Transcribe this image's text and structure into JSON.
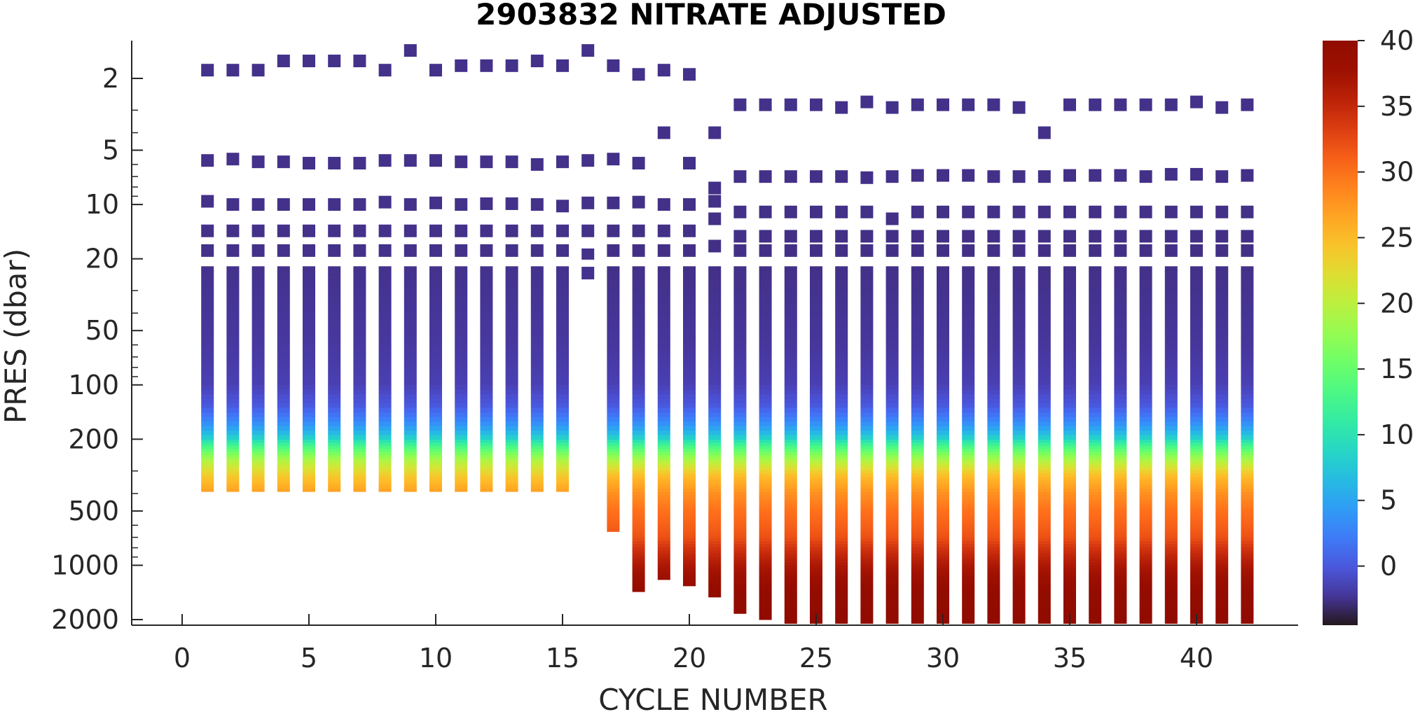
{
  "chart_data": {
    "type": "heatmap",
    "title": "2903832  NITRATE ADJUSTED",
    "xlabel": "CYCLE NUMBER",
    "ylabel": "PRES (dbar)",
    "x_scale": "linear",
    "y_scale": "log",
    "y_reversed": true,
    "xlim": [
      -1,
      44
    ],
    "ylim": [
      1.4,
      2100
    ],
    "xticks": [
      0,
      5,
      10,
      15,
      20,
      25,
      30,
      35,
      40
    ],
    "yticks": [
      2,
      5,
      10,
      20,
      50,
      100,
      200,
      500,
      1000,
      2000
    ],
    "colorbar": {
      "label": "",
      "range": [
        -4.5,
        40
      ],
      "ticks": [
        0,
        5,
        10,
        15,
        20,
        25,
        30,
        35,
        40
      ],
      "colormap": "turbo"
    },
    "cycles": [
      1,
      2,
      3,
      4,
      5,
      6,
      7,
      8,
      9,
      10,
      11,
      12,
      13,
      14,
      15,
      16,
      17,
      18,
      19,
      20,
      21,
      22,
      23,
      24,
      25,
      26,
      27,
      28,
      29,
      30,
      31,
      32,
      33,
      34,
      35,
      36,
      37,
      38,
      39,
      40,
      41,
      42
    ],
    "near_surface_pressures": [
      [
        1.8,
        5.7,
        9.6,
        14,
        18
      ],
      [
        1.8,
        5.6,
        10,
        14,
        18
      ],
      [
        1.8,
        5.8,
        10,
        14,
        18
      ],
      [
        1.6,
        5.8,
        10,
        14,
        18
      ],
      [
        1.6,
        5.9,
        10,
        14,
        18
      ],
      [
        1.6,
        5.9,
        10,
        14,
        18
      ],
      [
        1.6,
        5.9,
        10,
        14,
        18
      ],
      [
        1.8,
        5.7,
        9.7,
        14,
        18
      ],
      [
        1.4,
        5.7,
        10,
        14,
        18
      ],
      [
        1.8,
        5.7,
        9.8,
        14,
        18
      ],
      [
        1.7,
        5.8,
        10,
        14,
        18
      ],
      [
        1.7,
        5.8,
        9.9,
        14,
        18
      ],
      [
        1.7,
        5.8,
        9.9,
        14,
        18
      ],
      [
        1.6,
        6.0,
        10,
        14,
        18
      ],
      [
        1.7,
        5.8,
        10.2,
        14,
        18
      ],
      [
        1.4,
        5.7,
        9.8,
        14,
        19,
        24
      ],
      [
        1.7,
        5.6,
        9.8,
        14,
        18
      ],
      [
        1.9,
        5.9,
        9.7,
        14,
        18
      ],
      [
        1.8,
        4.0,
        10,
        14,
        18
      ],
      [
        1.9,
        5.9,
        10,
        14,
        18
      ],
      [
        4.0,
        8.1,
        9.6,
        12,
        17
      ],
      [
        2.8,
        7.0,
        11,
        15,
        18
      ],
      [
        2.8,
        7.0,
        11,
        15,
        18
      ],
      [
        2.8,
        7.0,
        11,
        15,
        18
      ],
      [
        2.8,
        7.0,
        11,
        15,
        18
      ],
      [
        2.9,
        7.0,
        11,
        15,
        18
      ],
      [
        2.7,
        7.1,
        11,
        15,
        18
      ],
      [
        2.9,
        7.0,
        12,
        15,
        18
      ],
      [
        2.8,
        6.9,
        11,
        15,
        18
      ],
      [
        2.8,
        6.9,
        11,
        15,
        18
      ],
      [
        2.8,
        6.9,
        11,
        15,
        18
      ],
      [
        2.8,
        7.0,
        11,
        15,
        18
      ],
      [
        2.9,
        7.0,
        11,
        15,
        18
      ],
      [
        4.0,
        7.0,
        11,
        15,
        18
      ],
      [
        2.8,
        6.9,
        11,
        15,
        18
      ],
      [
        2.8,
        6.9,
        11,
        15,
        18
      ],
      [
        2.8,
        6.9,
        11,
        15,
        18
      ],
      [
        2.8,
        7.0,
        11,
        15,
        18
      ],
      [
        2.8,
        6.8,
        11,
        15,
        18
      ],
      [
        2.7,
        6.8,
        11,
        15,
        18
      ],
      [
        2.9,
        7.0,
        11,
        15,
        18
      ],
      [
        2.8,
        6.9,
        11,
        15,
        18
      ]
    ],
    "max_pressure": [
      390,
      390,
      390,
      390,
      390,
      390,
      390,
      390,
      390,
      390,
      390,
      390,
      390,
      390,
      390,
      24,
      650,
      1400,
      1200,
      1300,
      1500,
      1850,
      2000,
      2100,
      2100,
      2100,
      2100,
      2100,
      2100,
      2100,
      2100,
      2100,
      2100,
      2100,
      2100,
      2100,
      2100,
      2100,
      2100,
      2100,
      2100,
      2100
    ],
    "profile_shallow": [
      [
        2,
        -2.6
      ],
      [
        20,
        -2.6
      ],
      [
        60,
        -2.1
      ],
      [
        100,
        -1.6
      ],
      [
        130,
        0
      ],
      [
        160,
        3
      ],
      [
        190,
        7
      ],
      [
        220,
        13
      ],
      [
        260,
        19
      ],
      [
        320,
        24
      ],
      [
        390,
        27
      ]
    ],
    "profile_deep": [
      [
        2,
        -2.6
      ],
      [
        20,
        -2.7
      ],
      [
        60,
        -2.2
      ],
      [
        100,
        -1.6
      ],
      [
        130,
        0
      ],
      [
        160,
        3
      ],
      [
        190,
        7
      ],
      [
        220,
        13
      ],
      [
        260,
        19
      ],
      [
        320,
        25
      ],
      [
        400,
        28
      ],
      [
        500,
        30
      ],
      [
        600,
        31
      ],
      [
        700,
        32
      ],
      [
        800,
        34
      ],
      [
        1000,
        36.5
      ],
      [
        1200,
        38
      ],
      [
        1500,
        39
      ],
      [
        2100,
        39.5
      ]
    ]
  }
}
